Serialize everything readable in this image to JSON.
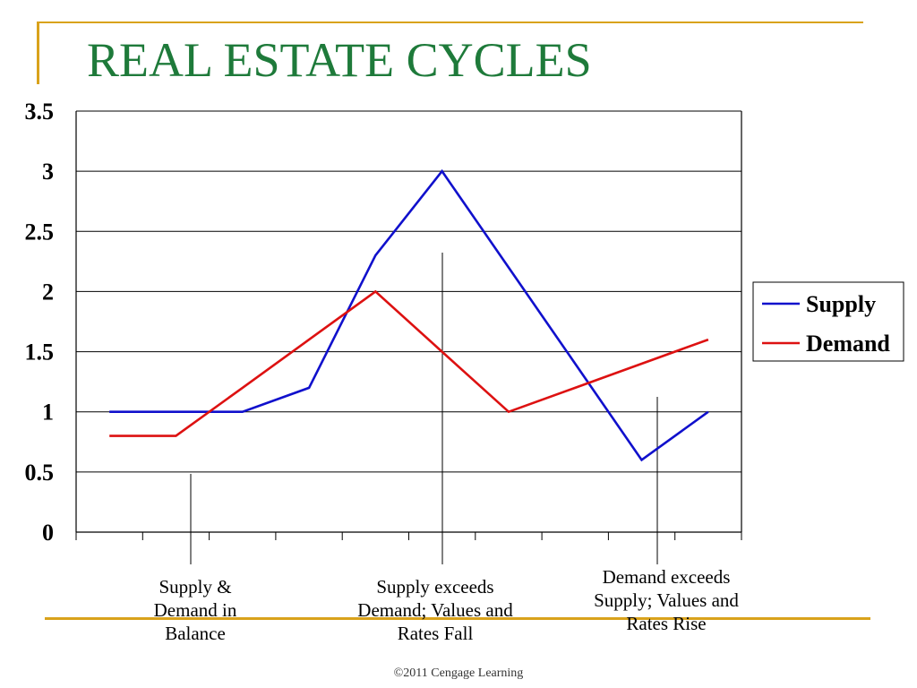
{
  "slide": {
    "title": "REAL ESTATE CYCLES",
    "footer": "©2011 Cengage Learning",
    "accent_color": "#d9a21b",
    "title_color": "#1e7a3a"
  },
  "chart_data": {
    "type": "line",
    "title": "",
    "xlabel": "",
    "ylabel": "",
    "x": [
      1,
      2,
      3,
      4,
      5,
      6,
      7,
      8,
      9,
      10
    ],
    "ylim": [
      0,
      3.5
    ],
    "yticks": [
      "0",
      "0.5",
      "1",
      "1.5",
      "2",
      "2.5",
      "3",
      "3.5"
    ],
    "grid": true,
    "legend_position": "right",
    "series": [
      {
        "name": "Supply",
        "color": "#1010cc",
        "values": [
          1,
          1,
          1,
          1.2,
          2.3,
          3,
          2.2,
          1.4,
          0.6,
          1
        ]
      },
      {
        "name": "Demand",
        "color": "#dd1111",
        "values": [
          0.8,
          0.8,
          1.2,
          1.6,
          2,
          1.5,
          1,
          1.2,
          1.4,
          1.6
        ]
      }
    ],
    "annotations": [
      {
        "label": "Supply & Demand in Balance",
        "lines": [
          "Supply &",
          "Demand in",
          "Balance"
        ]
      },
      {
        "label": "Supply exceeds Demand; Values and Rates Fall",
        "lines": [
          "Supply exceeds",
          "Demand; Values and",
          "Rates Fall"
        ]
      },
      {
        "label": "Demand exceeds Supply; Values and Rates Rise",
        "lines": [
          "Demand exceeds",
          "Supply; Values and",
          "Rates Rise"
        ]
      }
    ]
  }
}
